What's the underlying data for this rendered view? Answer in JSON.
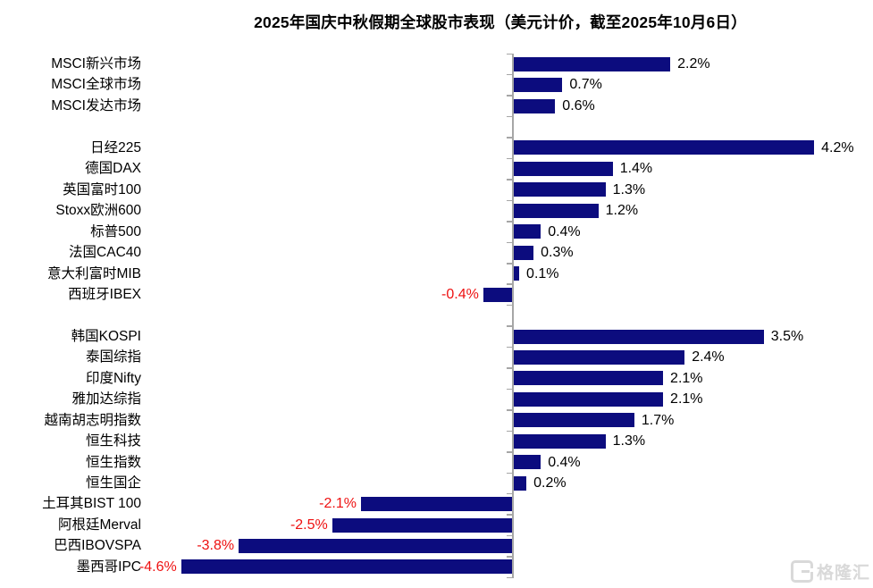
{
  "watermark": {
    "text": "格隆汇",
    "logo": "gelonghui-G"
  },
  "colors": {
    "bar": "#0c0c7e",
    "positive_label": "#000000",
    "negative_label": "#ee1111",
    "axis": "#a6a6a6",
    "watermark": "#d9d9d9",
    "background": "#ffffff"
  },
  "chart_data": {
    "type": "bar",
    "orientation": "horizontal",
    "title": "2025年国庆中秋假期全球股市表现（美元计价，截至2025年10月6日）",
    "unit": "%",
    "xlim": [
      -4.6,
      4.2
    ],
    "grid": false,
    "legend": false,
    "value_axis": "hidden",
    "baseline": 0,
    "groups": [
      {
        "rows": [
          {
            "label": "MSCI新兴市场",
            "value": 2.2,
            "display": "2.2%"
          },
          {
            "label": "MSCI全球市场",
            "value": 0.7,
            "display": "0.7%"
          },
          {
            "label": "MSCI发达市场",
            "value": 0.6,
            "display": "0.6%"
          }
        ]
      },
      {
        "rows": [
          {
            "label": "日经225",
            "value": 4.2,
            "display": "4.2%"
          },
          {
            "label": "德国DAX",
            "value": 1.4,
            "display": "1.4%"
          },
          {
            "label": "英国富时100",
            "value": 1.3,
            "display": "1.3%"
          },
          {
            "label": "Stoxx欧洲600",
            "value": 1.2,
            "display": "1.2%"
          },
          {
            "label": "标普500",
            "value": 0.4,
            "display": "0.4%"
          },
          {
            "label": "法国CAC40",
            "value": 0.3,
            "display": "0.3%"
          },
          {
            "label": "意大利富时MIB",
            "value": 0.1,
            "display": "0.1%"
          },
          {
            "label": "西班牙IBEX",
            "value": -0.4,
            "display": "-0.4%"
          }
        ]
      },
      {
        "rows": [
          {
            "label": "韩国KOSPI",
            "value": 3.5,
            "display": "3.5%"
          },
          {
            "label": "泰国综指",
            "value": 2.4,
            "display": "2.4%"
          },
          {
            "label": "印度Nifty",
            "value": 2.1,
            "display": "2.1%"
          },
          {
            "label": "雅加达综指",
            "value": 2.1,
            "display": "2.1%"
          },
          {
            "label": "越南胡志明指数",
            "value": 1.7,
            "display": "1.7%"
          },
          {
            "label": "恒生科技",
            "value": 1.3,
            "display": "1.3%"
          },
          {
            "label": "恒生指数",
            "value": 0.4,
            "display": "0.4%"
          },
          {
            "label": "恒生国企",
            "value": 0.2,
            "display": "0.2%"
          },
          {
            "label": "土耳其BIST 100",
            "value": -2.1,
            "display": "-2.1%"
          },
          {
            "label": "阿根廷Merval",
            "value": -2.5,
            "display": "-2.5%"
          },
          {
            "label": "巴西IBOVSPA",
            "value": -3.8,
            "display": "-3.8%"
          },
          {
            "label": "墨西哥IPC",
            "value": -4.6,
            "display": "-4.6%"
          }
        ]
      }
    ]
  }
}
